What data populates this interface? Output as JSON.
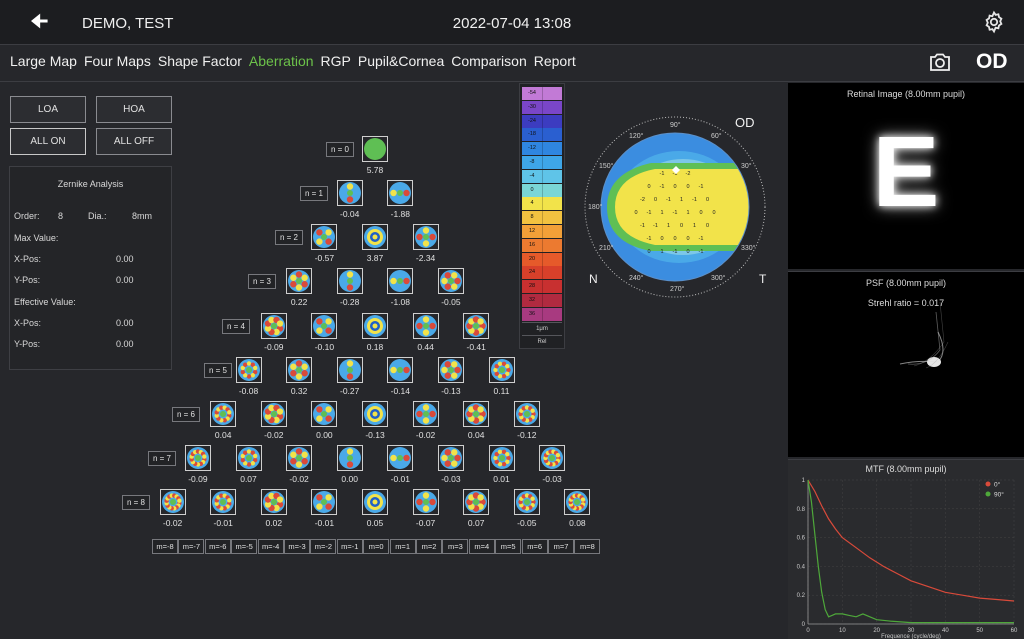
{
  "header": {
    "back_icon": "back-arrow-icon",
    "patient": "DEMO, TEST",
    "datetime": "2022-07-04 13:08",
    "settings_icon": "gear-icon"
  },
  "nav": {
    "tabs": [
      "Large Map",
      "Four Maps",
      "Shape Factor",
      "Aberration",
      "RGP",
      "Pupil&Cornea",
      "Comparison",
      "Report"
    ],
    "active_tab": "Aberration",
    "camera_icon": "camera-icon",
    "eye": "OD"
  },
  "controls": {
    "loa": "LOA",
    "hoa": "HOA",
    "all_on": "ALL ON",
    "all_off": "ALL OFF"
  },
  "zernike": {
    "title": "Zernike Analysis",
    "order_label": "Order:",
    "order": "8",
    "dia_label": "Dia.:",
    "dia": "8mm",
    "max_value": "Max Value:",
    "xpos_label": "X-Pos:",
    "ypos_label": "Y-Pos:",
    "max_x": "0.00",
    "max_y": "0.00",
    "effective_value": "Effective Value:",
    "eff_x": "0.00",
    "eff_y": "0.00"
  },
  "pyramid": {
    "rows": [
      {
        "label": "n = 0",
        "values": [
          "5.78"
        ]
      },
      {
        "label": "n = 1",
        "values": [
          "-0.04",
          "-1.88"
        ]
      },
      {
        "label": "n = 2",
        "values": [
          "-0.57",
          "3.87",
          "-2.34"
        ]
      },
      {
        "label": "n = 3",
        "values": [
          "0.22",
          "-0.28",
          "-1.08",
          "-0.05"
        ]
      },
      {
        "label": "n = 4",
        "values": [
          "-0.09",
          "-0.10",
          "0.18",
          "0.44",
          "-0.41"
        ]
      },
      {
        "label": "n = 5",
        "values": [
          "-0.08",
          "0.32",
          "-0.27",
          "-0.14",
          "-0.13",
          "0.11"
        ]
      },
      {
        "label": "n = 6",
        "values": [
          "0.04",
          "-0.02",
          "0.00",
          "-0.13",
          "-0.02",
          "0.04",
          "-0.12"
        ]
      },
      {
        "label": "n = 7",
        "values": [
          "-0.09",
          "0.07",
          "-0.02",
          "0.00",
          "-0.01",
          "-0.03",
          "0.01",
          "-0.03"
        ]
      },
      {
        "label": "n = 8",
        "values": [
          "-0.02",
          "-0.01",
          "0.02",
          "-0.01",
          "0.05",
          "-0.07",
          "0.07",
          "-0.05",
          "0.08"
        ]
      }
    ],
    "m_labels": [
      "m=-8",
      "m=-7",
      "m=-6",
      "m=-5",
      "m=-4",
      "m=-3",
      "m=-2",
      "m=-1",
      "m=0",
      "m=1",
      "m=2",
      "m=3",
      "m=4",
      "m=5",
      "m=6",
      "m=7",
      "m=8"
    ]
  },
  "colorscale": {
    "values": [
      "-54",
      "-30",
      "-24",
      "-18",
      "-12",
      "-8",
      "-4",
      "0",
      "4",
      "8",
      "12",
      "16",
      "20",
      "24",
      "28",
      "32",
      "36"
    ],
    "unit": "1μm",
    "mode": "Rel"
  },
  "cornea_map": {
    "eye": "OD",
    "nasal": "N",
    "temporal": "T",
    "ring_labels": [
      "30°",
      "60°",
      "90°",
      "120°",
      "150°",
      "180°",
      "210°",
      "240°",
      "270°",
      "300°",
      "330°"
    ],
    "map_values": [
      "-1",
      "-1",
      "-2",
      "0",
      "-1",
      "0",
      "0",
      "-1",
      "-2",
      "0",
      "-1",
      "1",
      "-1",
      "0",
      "0",
      "-1",
      "1",
      "-1",
      "1",
      "0",
      "0",
      "-1",
      "-1",
      "1",
      "0",
      "1",
      "0",
      "-1",
      "0",
      "0",
      "0",
      "-1",
      "0",
      "1",
      "-1",
      "0",
      "-1"
    ]
  },
  "retinal": {
    "title": "Retinal Image (8.00mm pupil)",
    "letter": "E"
  },
  "psf": {
    "title": "PSF (8.00mm pupil)",
    "strehl": "Strehl ratio = 0.017"
  },
  "mtf": {
    "title": "MTF (8.00mm pupil)",
    "legend": [
      "0°",
      "90°"
    ],
    "xlabel": "Frequence (cycle/deg)"
  },
  "chart_data": {
    "type": "line",
    "title": "MTF (8.00mm pupil)",
    "xlabel": "Frequence (cycle/deg)",
    "ylabel": "",
    "xlim": [
      0,
      60
    ],
    "ylim": [
      0,
      1
    ],
    "xticks": [
      0,
      10,
      20,
      30,
      40,
      50,
      60
    ],
    "yticks": [
      0,
      0.2,
      0.4,
      0.6,
      0.8,
      1
    ],
    "legend_position": "top-right",
    "series": [
      {
        "name": "0°",
        "color": "#d94a3a",
        "x": [
          0,
          2,
          4,
          6,
          8,
          10,
          14,
          18,
          22,
          26,
          30,
          35,
          40,
          45,
          50,
          55,
          60
        ],
        "y": [
          1,
          0.92,
          0.82,
          0.73,
          0.66,
          0.6,
          0.53,
          0.46,
          0.4,
          0.35,
          0.3,
          0.26,
          0.22,
          0.2,
          0.18,
          0.17,
          0.16
        ]
      },
      {
        "name": "90°",
        "color": "#4ea83a",
        "x": [
          0,
          1,
          2,
          3,
          4,
          5,
          6,
          7,
          8,
          10,
          12,
          14,
          16,
          18,
          20,
          24,
          30,
          40,
          60
        ],
        "y": [
          1,
          0.85,
          0.62,
          0.4,
          0.22,
          0.1,
          0.05,
          0.06,
          0.07,
          0.07,
          0.06,
          0.05,
          0.07,
          0.05,
          0.03,
          0.02,
          0.01,
          0.01,
          0.01
        ]
      }
    ]
  }
}
